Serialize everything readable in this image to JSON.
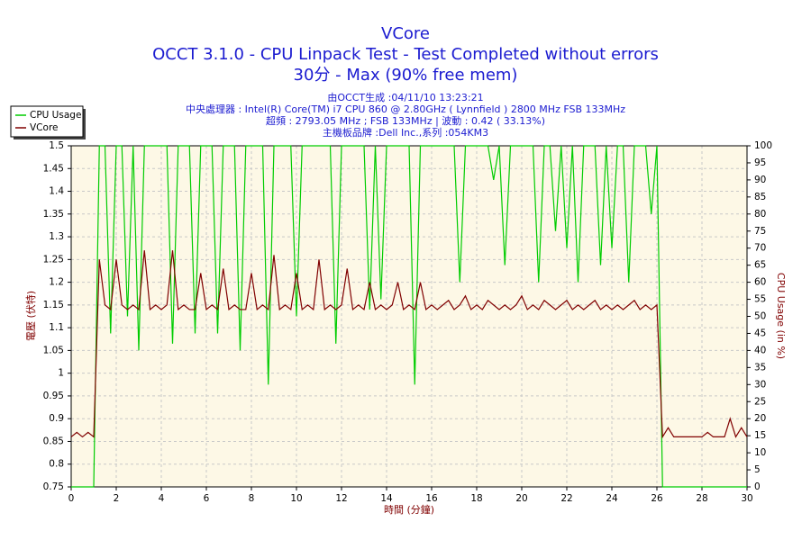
{
  "chart_data": {
    "type": "line",
    "title": "VCore",
    "subtitle": [
      "OCCT 3.1.0 - CPU Linpack Test - Test Completed without errors",
      "30分 - Max (90% free mem)"
    ],
    "info": [
      "由OCCT生成 :04/11/10 13:23:21",
      "中央處理器 : Intel(R) Core(TM) i7 CPU 860 @ 2.80GHz ( Lynnfield ) 2800 MHz FSB 133MHz",
      "超頻 : 2793.05 MHz ; FSB 133MHz | 波動 : 0.42 ( 33.13%)",
      "主機板品牌 :Dell Inc.,系列 :054KM3"
    ],
    "xlabel": "時間 (分鐘)",
    "ylabel": "電壓 (伏特)",
    "y2label": "CPU Usage (in %)",
    "x": [
      0,
      0.25,
      0.5,
      0.75,
      1,
      1.25,
      1.5,
      1.75,
      2,
      2.25,
      2.5,
      2.75,
      3,
      3.25,
      3.5,
      3.75,
      4,
      4.25,
      4.5,
      4.75,
      5,
      5.25,
      5.5,
      5.75,
      6,
      6.25,
      6.5,
      6.75,
      7,
      7.25,
      7.5,
      7.75,
      8,
      8.25,
      8.5,
      8.75,
      9,
      9.25,
      9.5,
      9.75,
      10,
      10.25,
      10.5,
      10.75,
      11,
      11.25,
      11.5,
      11.75,
      12,
      12.25,
      12.5,
      12.75,
      13,
      13.25,
      13.5,
      13.75,
      14,
      14.25,
      14.5,
      14.75,
      15,
      15.25,
      15.5,
      15.75,
      16,
      16.25,
      16.5,
      16.75,
      17,
      17.25,
      17.5,
      17.75,
      18,
      18.25,
      18.5,
      18.75,
      19,
      19.25,
      19.5,
      19.75,
      20,
      20.25,
      20.5,
      20.75,
      21,
      21.25,
      21.5,
      21.75,
      22,
      22.25,
      22.5,
      22.75,
      23,
      23.25,
      23.5,
      23.75,
      24,
      24.25,
      24.5,
      24.75,
      25,
      25.25,
      25.5,
      25.75,
      26,
      26.25,
      26.5,
      26.75,
      27,
      27.25,
      27.5,
      27.75,
      28,
      28.25,
      28.5,
      28.75,
      29,
      29.25,
      29.5,
      29.75,
      30
    ],
    "series": [
      {
        "name": "CPU Usage",
        "color": "#00cc00",
        "axis": "y2",
        "values": [
          0,
          0,
          0,
          0,
          0,
          100,
          100,
          45,
          100,
          100,
          50,
          100,
          40,
          100,
          100,
          100,
          100,
          100,
          42,
          100,
          100,
          100,
          45,
          100,
          100,
          100,
          45,
          100,
          100,
          100,
          40,
          100,
          100,
          100,
          100,
          30,
          100,
          100,
          100,
          100,
          50,
          100,
          100,
          100,
          100,
          100,
          100,
          42,
          100,
          100,
          100,
          100,
          100,
          52,
          100,
          55,
          100,
          100,
          100,
          100,
          100,
          30,
          100,
          100,
          100,
          100,
          100,
          100,
          100,
          60,
          100,
          100,
          100,
          100,
          100,
          90,
          100,
          65,
          100,
          100,
          100,
          100,
          100,
          60,
          100,
          100,
          75,
          100,
          70,
          100,
          60,
          100,
          100,
          100,
          65,
          100,
          70,
          100,
          100,
          60,
          100,
          100,
          100,
          80,
          100,
          0,
          0,
          0,
          0,
          0,
          0,
          0,
          0,
          0,
          0,
          0,
          0,
          0,
          0,
          0,
          0
        ]
      },
      {
        "name": "VCore",
        "color": "#800000",
        "values": [
          0.86,
          0.87,
          0.86,
          0.87,
          0.86,
          1.25,
          1.15,
          1.14,
          1.25,
          1.15,
          1.14,
          1.15,
          1.14,
          1.27,
          1.14,
          1.15,
          1.14,
          1.15,
          1.27,
          1.14,
          1.15,
          1.14,
          1.14,
          1.22,
          1.14,
          1.15,
          1.14,
          1.23,
          1.14,
          1.15,
          1.14,
          1.14,
          1.22,
          1.14,
          1.15,
          1.14,
          1.26,
          1.14,
          1.15,
          1.14,
          1.22,
          1.14,
          1.15,
          1.14,
          1.25,
          1.14,
          1.15,
          1.14,
          1.15,
          1.23,
          1.14,
          1.15,
          1.14,
          1.2,
          1.14,
          1.15,
          1.14,
          1.15,
          1.2,
          1.14,
          1.15,
          1.14,
          1.2,
          1.14,
          1.15,
          1.14,
          1.15,
          1.16,
          1.14,
          1.15,
          1.17,
          1.14,
          1.15,
          1.14,
          1.16,
          1.15,
          1.14,
          1.15,
          1.14,
          1.15,
          1.17,
          1.14,
          1.15,
          1.14,
          1.16,
          1.15,
          1.14,
          1.15,
          1.16,
          1.14,
          1.15,
          1.14,
          1.15,
          1.16,
          1.14,
          1.15,
          1.14,
          1.15,
          1.14,
          1.15,
          1.16,
          1.14,
          1.15,
          1.14,
          1.15,
          0.86,
          0.88,
          0.86,
          0.86,
          0.86,
          0.86,
          0.86,
          0.86,
          0.87,
          0.86,
          0.86,
          0.86,
          0.9,
          0.86,
          0.88,
          0.86
        ]
      }
    ],
    "xlim": [
      0,
      30
    ],
    "xticks": [
      0,
      2,
      4,
      6,
      8,
      10,
      12,
      14,
      16,
      18,
      20,
      22,
      24,
      26,
      28,
      30
    ],
    "ylim": [
      0.75,
      1.5
    ],
    "yticks": [
      0.75,
      0.8,
      0.85,
      0.9,
      0.95,
      1,
      1.05,
      1.1,
      1.15,
      1.2,
      1.25,
      1.3,
      1.35,
      1.4,
      1.45,
      1.5
    ],
    "y2lim": [
      0,
      100
    ],
    "y2ticks": [
      0,
      5,
      10,
      15,
      20,
      25,
      30,
      35,
      40,
      45,
      50,
      55,
      60,
      65,
      70,
      75,
      80,
      85,
      90,
      95,
      100
    ],
    "grid": true,
    "legend": "top-left",
    "background": "#fdf8e6"
  }
}
